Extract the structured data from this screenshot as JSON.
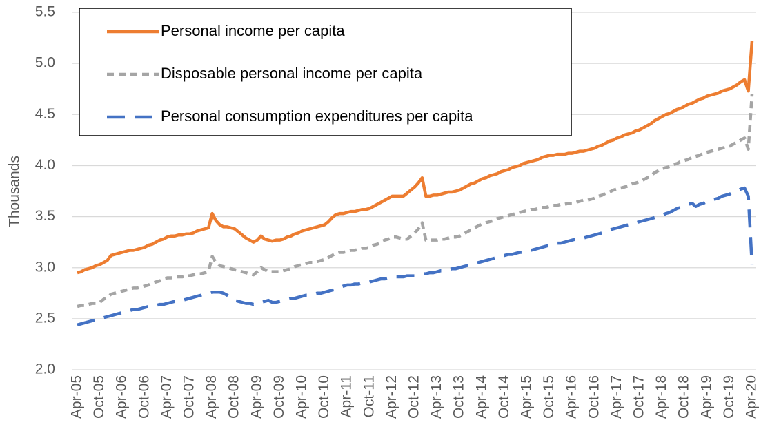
{
  "chart_data": {
    "type": "line",
    "y_label": "Thousands",
    "ylim": [
      2,
      5.5
    ],
    "yticks": [
      {
        "value": 2,
        "label": "2.0"
      },
      2.5,
      {
        "value": 3,
        "label": "3.0"
      },
      3.5,
      {
        "value": 4,
        "label": "4.0"
      },
      4.5,
      {
        "value": 5,
        "label": "5.0"
      },
      5.5
    ],
    "grid": true,
    "legend": "top-left",
    "categories": [
      "Apr-05",
      null,
      null,
      null,
      null,
      null,
      "Oct-05",
      null,
      null,
      null,
      null,
      null,
      "Apr-06",
      null,
      null,
      null,
      null,
      null,
      "Oct-06",
      null,
      null,
      null,
      null,
      null,
      "Apr-07",
      null,
      null,
      null,
      null,
      null,
      "Oct-07",
      null,
      null,
      null,
      null,
      null,
      "Apr-08",
      null,
      null,
      null,
      null,
      null,
      "Oct-08",
      null,
      null,
      null,
      null,
      null,
      "Apr-09",
      null,
      null,
      null,
      null,
      null,
      "Oct-09",
      null,
      null,
      null,
      null,
      null,
      "Apr-10",
      null,
      null,
      null,
      null,
      null,
      "Oct-10",
      null,
      null,
      null,
      null,
      null,
      "Apr-11",
      null,
      null,
      null,
      null,
      null,
      "Oct-11",
      null,
      null,
      null,
      null,
      null,
      "Apr-12",
      null,
      null,
      null,
      null,
      null,
      "Oct-12",
      null,
      null,
      null,
      null,
      null,
      "Apr-13",
      null,
      null,
      null,
      null,
      null,
      "Oct-13",
      null,
      null,
      null,
      null,
      null,
      "Apr-14",
      null,
      null,
      null,
      null,
      null,
      "Oct-14",
      null,
      null,
      null,
      null,
      null,
      "Apr-15",
      null,
      null,
      null,
      null,
      null,
      "Oct-15",
      null,
      null,
      null,
      null,
      null,
      "Apr-16",
      null,
      null,
      null,
      null,
      null,
      "Oct-16",
      null,
      null,
      null,
      null,
      null,
      "Apr-17",
      null,
      null,
      null,
      null,
      null,
      "Oct-17",
      null,
      null,
      null,
      null,
      null,
      "Apr-18",
      null,
      null,
      null,
      null,
      null,
      "Oct-18",
      null,
      null,
      null,
      null,
      null,
      "Apr-19",
      null,
      null,
      null,
      null,
      null,
      "Oct-19",
      null,
      null,
      null,
      null,
      null,
      "Apr-20"
    ],
    "series": [
      {
        "name": "Personal income per capita",
        "color": "#ed7d31",
        "dash": "solid",
        "values": [
          2.95,
          2.96,
          2.98,
          2.99,
          3.0,
          3.02,
          3.03,
          3.05,
          3.07,
          3.12,
          3.13,
          3.14,
          3.15,
          3.16,
          3.17,
          3.17,
          3.18,
          3.19,
          3.2,
          3.22,
          3.23,
          3.25,
          3.27,
          3.28,
          3.3,
          3.31,
          3.31,
          3.32,
          3.32,
          3.33,
          3.33,
          3.34,
          3.36,
          3.37,
          3.38,
          3.39,
          3.53,
          3.46,
          3.42,
          3.4,
          3.4,
          3.39,
          3.38,
          3.35,
          3.32,
          3.29,
          3.27,
          3.25,
          3.27,
          3.31,
          3.28,
          3.27,
          3.26,
          3.27,
          3.27,
          3.28,
          3.3,
          3.31,
          3.33,
          3.34,
          3.36,
          3.37,
          3.38,
          3.39,
          3.4,
          3.41,
          3.42,
          3.45,
          3.49,
          3.52,
          3.53,
          3.53,
          3.54,
          3.55,
          3.55,
          3.56,
          3.57,
          3.57,
          3.58,
          3.6,
          3.62,
          3.64,
          3.66,
          3.68,
          3.7,
          3.7,
          3.7,
          3.7,
          3.73,
          3.76,
          3.79,
          3.83,
          3.88,
          3.7,
          3.7,
          3.71,
          3.71,
          3.72,
          3.73,
          3.74,
          3.74,
          3.75,
          3.76,
          3.78,
          3.8,
          3.82,
          3.83,
          3.85,
          3.87,
          3.88,
          3.9,
          3.91,
          3.92,
          3.94,
          3.95,
          3.96,
          3.98,
          3.99,
          4.0,
          4.02,
          4.03,
          4.04,
          4.05,
          4.06,
          4.08,
          4.09,
          4.1,
          4.1,
          4.11,
          4.11,
          4.11,
          4.12,
          4.12,
          4.13,
          4.14,
          4.14,
          4.15,
          4.16,
          4.17,
          4.19,
          4.2,
          4.22,
          4.24,
          4.25,
          4.27,
          4.28,
          4.3,
          4.31,
          4.32,
          4.34,
          4.35,
          4.37,
          4.39,
          4.41,
          4.44,
          4.46,
          4.48,
          4.5,
          4.51,
          4.53,
          4.55,
          4.56,
          4.58,
          4.6,
          4.61,
          4.63,
          4.65,
          4.66,
          4.68,
          4.69,
          4.7,
          4.71,
          4.73,
          4.74,
          4.75,
          4.77,
          4.79,
          4.82,
          4.84,
          4.73,
          5.22
        ]
      },
      {
        "name": "Disposable personal income per capita",
        "color": "#a5a5a5",
        "dash": "dashed",
        "values": [
          2.62,
          2.63,
          2.63,
          2.64,
          2.65,
          2.65,
          2.66,
          2.69,
          2.71,
          2.74,
          2.75,
          2.76,
          2.77,
          2.78,
          2.79,
          2.8,
          2.8,
          2.81,
          2.82,
          2.83,
          2.85,
          2.86,
          2.87,
          2.89,
          2.9,
          2.9,
          2.91,
          2.91,
          2.91,
          2.92,
          2.92,
          2.93,
          2.94,
          2.94,
          2.95,
          2.96,
          3.11,
          3.05,
          3.02,
          3.01,
          3.0,
          2.99,
          2.98,
          2.97,
          2.96,
          2.95,
          2.94,
          2.93,
          2.96,
          3.0,
          2.98,
          2.96,
          2.96,
          2.96,
          2.96,
          2.97,
          2.98,
          2.99,
          3.01,
          3.02,
          3.03,
          3.04,
          3.05,
          3.05,
          3.06,
          3.07,
          3.08,
          3.1,
          3.12,
          3.14,
          3.15,
          3.15,
          3.16,
          3.17,
          3.17,
          3.18,
          3.19,
          3.19,
          3.2,
          3.22,
          3.23,
          3.25,
          3.27,
          3.28,
          3.3,
          3.3,
          3.29,
          3.28,
          3.28,
          3.31,
          3.34,
          3.38,
          3.44,
          3.27,
          3.27,
          3.27,
          3.27,
          3.28,
          3.28,
          3.29,
          3.3,
          3.3,
          3.31,
          3.33,
          3.35,
          3.37,
          3.39,
          3.41,
          3.43,
          3.44,
          3.45,
          3.46,
          3.48,
          3.49,
          3.5,
          3.51,
          3.52,
          3.53,
          3.54,
          3.55,
          3.56,
          3.57,
          3.57,
          3.58,
          3.59,
          3.59,
          3.6,
          3.61,
          3.61,
          3.62,
          3.62,
          3.63,
          3.63,
          3.64,
          3.65,
          3.66,
          3.66,
          3.67,
          3.68,
          3.7,
          3.71,
          3.73,
          3.74,
          3.76,
          3.77,
          3.78,
          3.79,
          3.8,
          3.82,
          3.83,
          3.84,
          3.86,
          3.88,
          3.9,
          3.93,
          3.95,
          3.97,
          3.98,
          3.99,
          4.01,
          4.02,
          4.04,
          4.05,
          4.06,
          4.08,
          4.09,
          4.1,
          4.12,
          4.13,
          4.14,
          4.15,
          4.16,
          4.17,
          4.18,
          4.19,
          4.21,
          4.23,
          4.25,
          4.27,
          4.16,
          4.7
        ]
      },
      {
        "name": "Personal consumption expenditures per capita",
        "color": "#4472c4",
        "dash": "longdash",
        "values": [
          2.44,
          2.45,
          2.46,
          2.47,
          2.48,
          2.49,
          2.5,
          2.51,
          2.52,
          2.53,
          2.54,
          2.55,
          2.56,
          2.57,
          2.58,
          2.59,
          2.59,
          2.6,
          2.61,
          2.62,
          2.62,
          2.63,
          2.64,
          2.64,
          2.65,
          2.66,
          2.67,
          2.67,
          2.68,
          2.69,
          2.7,
          2.71,
          2.72,
          2.73,
          2.74,
          2.75,
          2.76,
          2.76,
          2.76,
          2.75,
          2.73,
          2.7,
          2.68,
          2.67,
          2.66,
          2.65,
          2.65,
          2.64,
          2.65,
          2.66,
          2.67,
          2.68,
          2.66,
          2.66,
          2.67,
          2.68,
          2.69,
          2.7,
          2.7,
          2.71,
          2.72,
          2.73,
          2.73,
          2.74,
          2.75,
          2.75,
          2.76,
          2.77,
          2.78,
          2.79,
          2.81,
          2.82,
          2.83,
          2.83,
          2.84,
          2.84,
          2.85,
          2.85,
          2.86,
          2.87,
          2.88,
          2.89,
          2.89,
          2.9,
          2.91,
          2.91,
          2.91,
          2.91,
          2.92,
          2.92,
          2.92,
          2.93,
          2.94,
          2.94,
          2.95,
          2.95,
          2.96,
          2.97,
          2.97,
          2.98,
          2.99,
          2.99,
          3.0,
          3.01,
          3.02,
          3.03,
          3.04,
          3.05,
          3.06,
          3.07,
          3.08,
          3.09,
          3.1,
          3.11,
          3.12,
          3.13,
          3.13,
          3.14,
          3.15,
          3.15,
          3.16,
          3.17,
          3.18,
          3.19,
          3.2,
          3.21,
          3.22,
          3.23,
          3.24,
          3.24,
          3.25,
          3.26,
          3.27,
          3.28,
          3.29,
          3.29,
          3.3,
          3.31,
          3.32,
          3.33,
          3.34,
          3.36,
          3.37,
          3.38,
          3.39,
          3.4,
          3.41,
          3.42,
          3.43,
          3.44,
          3.45,
          3.46,
          3.47,
          3.48,
          3.49,
          3.5,
          3.51,
          3.53,
          3.54,
          3.56,
          3.58,
          3.59,
          3.61,
          3.62,
          3.63,
          3.6,
          3.62,
          3.63,
          3.65,
          3.66,
          3.67,
          3.68,
          3.7,
          3.71,
          3.72,
          3.74,
          3.75,
          3.77,
          3.78,
          3.7,
          3.03
        ]
      }
    ]
  }
}
